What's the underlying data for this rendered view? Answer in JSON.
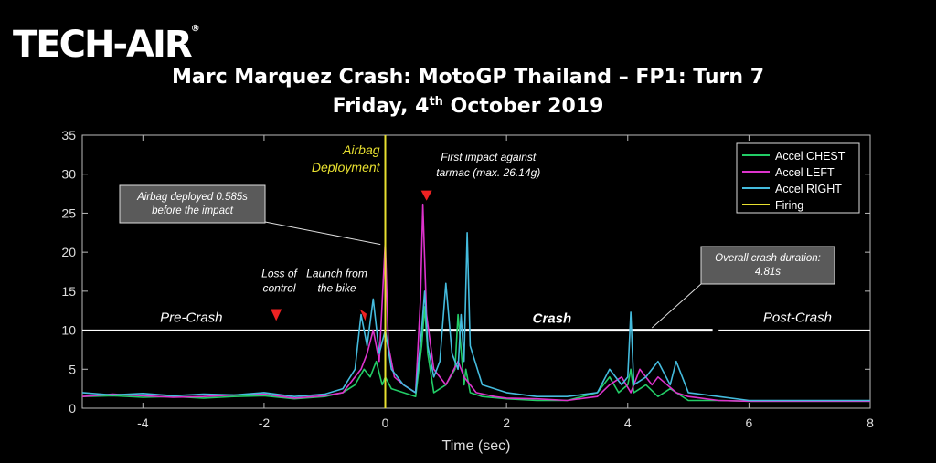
{
  "logo": {
    "text": "TECH-AIR",
    "mark": "®"
  },
  "header": {
    "title_line1": "Marc Marquez Crash: MotoGP Thailand – FP1: Turn 7",
    "title_line2_prefix": "Friday, 4",
    "title_line2_sup": "th",
    "title_line2_suffix": " October 2019"
  },
  "chart_data": {
    "type": "line",
    "xlabel": "Time (sec)",
    "ylabel": "",
    "xlim": [
      -5,
      8
    ],
    "ylim": [
      0,
      35
    ],
    "xticks": [
      -4,
      -2,
      0,
      2,
      4,
      6,
      8
    ],
    "yticks": [
      0,
      5,
      10,
      15,
      20,
      25,
      30,
      35
    ],
    "grid": false,
    "legend_position": "top-right",
    "series": [
      {
        "name": "Accel CHEST",
        "color": "#22cc66",
        "x": [
          -5,
          -4.5,
          -4,
          -3.5,
          -3,
          -2.5,
          -2,
          -1.5,
          -1,
          -0.7,
          -0.5,
          -0.35,
          -0.25,
          -0.15,
          -0.05,
          0,
          0.1,
          0.3,
          0.5,
          0.6,
          0.65,
          0.7,
          0.8,
          1.0,
          1.15,
          1.2,
          1.3,
          1.33,
          1.4,
          1.6,
          2.0,
          2.5,
          3.0,
          3.5,
          3.7,
          3.85,
          4.0,
          4.05,
          4.1,
          4.3,
          4.5,
          4.7,
          5.0,
          5.5,
          6.0,
          7.0,
          8.0
        ],
        "y": [
          1.5,
          1.6,
          1.4,
          1.5,
          1.3,
          1.5,
          1.6,
          1.2,
          1.5,
          2.0,
          3.0,
          5.0,
          4.0,
          6.0,
          3.0,
          4.0,
          2.5,
          2.0,
          1.5,
          8.0,
          13.0,
          7.0,
          2.0,
          3.0,
          5.0,
          12.0,
          3.0,
          5.0,
          2.0,
          1.5,
          1.2,
          1.0,
          1.0,
          2.0,
          4.0,
          2.0,
          3.0,
          5.0,
          2.0,
          3.0,
          1.5,
          2.5,
          1.0,
          1.0,
          0.9,
          0.9,
          0.9
        ]
      },
      {
        "name": "Accel LEFT",
        "color": "#dd33cc",
        "x": [
          -5,
          -4.5,
          -4,
          -3.5,
          -3,
          -2.5,
          -2,
          -1.5,
          -1,
          -0.7,
          -0.5,
          -0.4,
          -0.3,
          -0.2,
          -0.1,
          0,
          0.05,
          0.15,
          0.3,
          0.5,
          0.58,
          0.62,
          0.68,
          0.8,
          1.0,
          1.2,
          1.3,
          1.5,
          1.8,
          2.0,
          2.5,
          3.0,
          3.5,
          3.7,
          3.9,
          4.05,
          4.2,
          4.4,
          4.5,
          4.8,
          5.0,
          5.5,
          6.0,
          7.0,
          8.0
        ],
        "y": [
          1.5,
          1.8,
          1.6,
          1.4,
          1.5,
          1.7,
          1.8,
          1.3,
          1.6,
          2.0,
          4.0,
          5.0,
          7.0,
          10.0,
          6.0,
          21.5,
          8.0,
          4.0,
          3.0,
          2.0,
          14.0,
          26.14,
          12.0,
          5.0,
          3.0,
          6.0,
          4.0,
          2.0,
          1.5,
          1.3,
          1.2,
          1.0,
          1.5,
          3.0,
          4.0,
          2.0,
          5.0,
          3.0,
          4.0,
          2.0,
          1.5,
          1.0,
          0.9,
          0.9,
          0.9
        ]
      },
      {
        "name": "Accel RIGHT",
        "color": "#44bbdd",
        "x": [
          -5,
          -4.5,
          -4,
          -3.5,
          -3,
          -2.5,
          -2,
          -1.5,
          -1,
          -0.7,
          -0.5,
          -0.4,
          -0.3,
          -0.2,
          -0.1,
          0,
          0.1,
          0.3,
          0.5,
          0.6,
          0.65,
          0.7,
          0.8,
          0.9,
          1.0,
          1.1,
          1.2,
          1.25,
          1.3,
          1.35,
          1.4,
          1.6,
          2.0,
          2.5,
          3.0,
          3.5,
          3.7,
          3.9,
          4.0,
          4.05,
          4.1,
          4.3,
          4.5,
          4.7,
          4.8,
          5.0,
          5.5,
          6.0,
          7.0,
          8.0
        ],
        "y": [
          2.0,
          1.7,
          1.9,
          1.6,
          1.8,
          1.7,
          2.0,
          1.5,
          1.8,
          2.5,
          5.0,
          12.0,
          8.0,
          14.0,
          7.0,
          10.0,
          5.0,
          3.0,
          2.0,
          10.0,
          15.0,
          8.0,
          4.0,
          6.0,
          16.0,
          7.0,
          5.0,
          12.0,
          6.0,
          22.5,
          8.0,
          3.0,
          2.0,
          1.5,
          1.5,
          2.0,
          5.0,
          3.0,
          4.0,
          12.3,
          3.0,
          4.0,
          6.0,
          3.0,
          6.0,
          2.0,
          1.5,
          1.0,
          1.0,
          1.0
        ]
      },
      {
        "name": "Firing",
        "color": "#e8e030",
        "x": [
          0,
          0
        ],
        "y": [
          0,
          35
        ]
      }
    ],
    "annotations": {
      "phase_line_y": 10,
      "pre_crash": "Pre-Crash",
      "crash": "Crash",
      "post_crash": "Post-Crash",
      "airbag_deployment": "Airbag\nDeployment",
      "first_impact": "First impact against\ntarmac (max. 26.14g)",
      "loss_of_control": "Loss of\ncontrol",
      "launch_from_bike": "Launch from\nthe bike",
      "callout_deployed": "Airbag deployed 0.585s\nbefore the impact",
      "callout_duration": "Overall crash duration:\n4.81s"
    }
  }
}
